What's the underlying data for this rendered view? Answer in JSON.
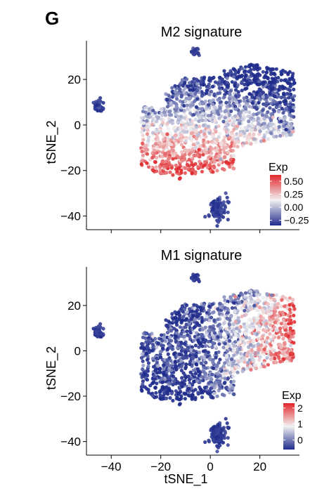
{
  "figure": {
    "panel_label": "G"
  },
  "chart_data": [
    {
      "type": "scatter",
      "title": "M2 signature",
      "xlabel": "",
      "ylabel": "tSNE_2",
      "xlim": [
        -50,
        36
      ],
      "ylim": [
        -46,
        37
      ],
      "x_ticks": [
        -40,
        -20,
        0,
        20
      ],
      "y_ticks": [
        20,
        0,
        -20,
        -40
      ],
      "show_x_tick_labels": false,
      "grid": false,
      "legend": {
        "title": "Exp",
        "position": "right-bottom",
        "ticks": [
          0.5,
          0.25,
          0.0,
          -0.25
        ],
        "tick_labels": [
          "0.50",
          "0.25",
          "0.00",
          "−0.25"
        ],
        "range": [
          -0.35,
          0.62
        ],
        "colors": {
          "low": "#1f2c8c",
          "mid": "#f2f2f2",
          "high": "#e0272b"
        }
      },
      "color_pattern": "high-lower-region",
      "clusters": [
        {
          "name": "top-small",
          "cx": -6,
          "cy": 32,
          "rx": 2,
          "ry": 2,
          "n": 25
        },
        {
          "name": "left-island",
          "cx": -45,
          "cy": 8.5,
          "rx": 2.2,
          "ry": 3,
          "n": 45
        },
        {
          "name": "main-body",
          "cx": 4,
          "cy": 3,
          "rx": 31,
          "ry": 19,
          "n": 1700
        },
        {
          "name": "bottom-island",
          "cx": 3,
          "cy": -37,
          "rx": 4,
          "ry": 5,
          "n": 120
        }
      ]
    },
    {
      "type": "scatter",
      "title": "M1 signature",
      "xlabel": "tSNE_1",
      "ylabel": "tSNE_2",
      "xlim": [
        -50,
        36
      ],
      "ylim": [
        -46,
        37
      ],
      "x_ticks": [
        -40,
        -20,
        0,
        20
      ],
      "y_ticks": [
        20,
        0,
        -20,
        -40
      ],
      "show_x_tick_labels": true,
      "grid": false,
      "legend": {
        "title": "Exp",
        "position": "right-bottom",
        "ticks": [
          2,
          1,
          0
        ],
        "tick_labels": [
          "2",
          "1",
          "0"
        ],
        "range": [
          -0.6,
          2.3
        ],
        "colors": {
          "low": "#1f2c8c",
          "mid": "#f2f2f2",
          "high": "#e0272b"
        }
      },
      "color_pattern": "high-right-region",
      "clusters": [
        {
          "name": "top-small",
          "cx": -6,
          "cy": 32,
          "rx": 2,
          "ry": 2,
          "n": 25
        },
        {
          "name": "left-island",
          "cx": -45,
          "cy": 8.5,
          "rx": 2.2,
          "ry": 3,
          "n": 45
        },
        {
          "name": "main-body",
          "cx": 4,
          "cy": 3,
          "rx": 31,
          "ry": 19,
          "n": 1700
        },
        {
          "name": "bottom-island",
          "cx": 3,
          "cy": -37,
          "rx": 4,
          "ry": 5,
          "n": 120
        }
      ]
    }
  ]
}
